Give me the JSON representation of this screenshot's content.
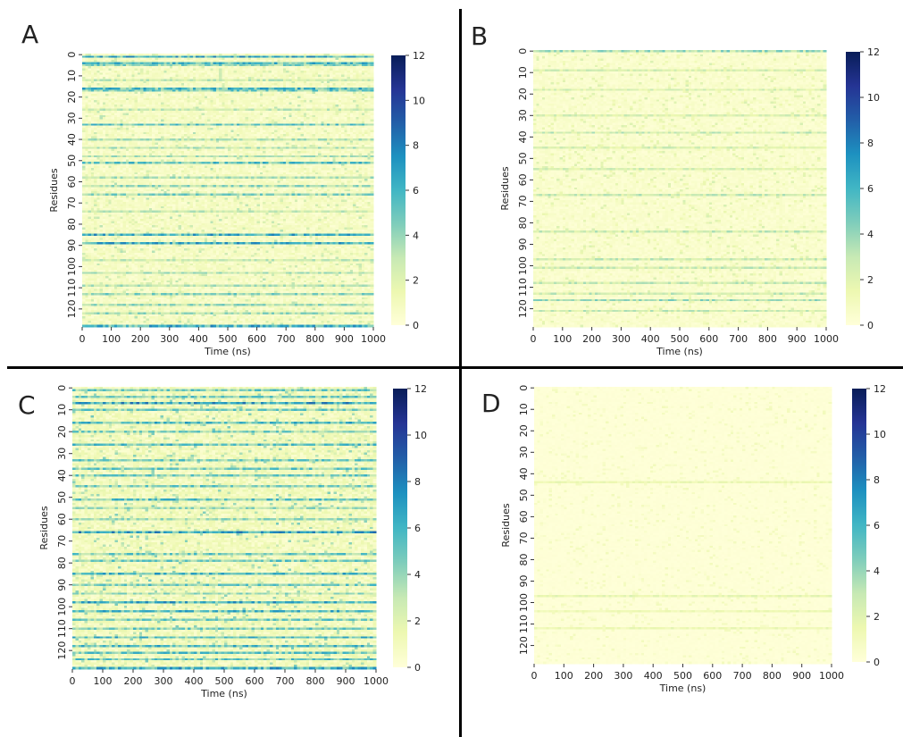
{
  "colors": {
    "colormap": [
      "#ffffd9",
      "#edf8b1",
      "#c7e9b4",
      "#7fcdbb",
      "#41b6c4",
      "#1d91c0",
      "#225ea8",
      "#253494",
      "#081d58"
    ],
    "divider": "#000000",
    "text": "#222222"
  },
  "chart_data": [
    {
      "type": "heatmap",
      "panel_label": "A",
      "xlabel": "Time (ns)",
      "ylabel": "Residues",
      "xlim": [
        0,
        1000
      ],
      "ylim": [
        0,
        129
      ],
      "x_ticks": [
        "0",
        "100",
        "200",
        "300",
        "400",
        "500",
        "600",
        "700",
        "800",
        "900",
        "1000"
      ],
      "y_ticks": [
        "0",
        "10",
        "20",
        "30",
        "40",
        "50",
        "60",
        "70",
        "80",
        "90",
        "100",
        "110",
        "120"
      ],
      "colorbar": {
        "min": 0,
        "max": 12,
        "ticks": [
          "0",
          "2",
          "4",
          "6",
          "8",
          "10",
          "12"
        ]
      },
      "base_level": 1.0,
      "noise_level": 1.2,
      "rows": [
        {
          "residue": 1,
          "value": 6.5
        },
        {
          "residue": 4,
          "value": 6.0
        },
        {
          "residue": 5,
          "value": 4.5
        },
        {
          "residue": 12,
          "value": 3.0
        },
        {
          "residue": 16,
          "value": 6.0
        },
        {
          "residue": 17,
          "value": 5.0
        },
        {
          "residue": 26,
          "value": 3.0
        },
        {
          "residue": 33,
          "value": 5.5
        },
        {
          "residue": 40,
          "value": 3.5
        },
        {
          "residue": 44,
          "value": 3.5
        },
        {
          "residue": 48,
          "value": 3.5
        },
        {
          "residue": 51,
          "value": 5.5
        },
        {
          "residue": 58,
          "value": 3.5
        },
        {
          "residue": 62,
          "value": 4.0
        },
        {
          "residue": 66,
          "value": 4.5
        },
        {
          "residue": 74,
          "value": 3.0
        },
        {
          "residue": 85,
          "value": 6.5
        },
        {
          "residue": 89,
          "value": 6.5
        },
        {
          "residue": 97,
          "value": 3.0
        },
        {
          "residue": 103,
          "value": 3.5
        },
        {
          "residue": 109,
          "value": 3.5
        },
        {
          "residue": 113,
          "value": 4.5
        },
        {
          "residue": 118,
          "value": 4.0
        },
        {
          "residue": 122,
          "value": 4.0
        },
        {
          "residue": 128,
          "value": 6.5
        }
      ]
    },
    {
      "type": "heatmap",
      "panel_label": "B",
      "xlabel": "Time (ns)",
      "ylabel": "Residues",
      "xlim": [
        0,
        1000
      ],
      "ylim": [
        0,
        129
      ],
      "x_ticks": [
        "0",
        "100",
        "200",
        "300",
        "400",
        "500",
        "600",
        "700",
        "800",
        "900",
        "1000"
      ],
      "y_ticks": [
        "0",
        "10",
        "20",
        "30",
        "40",
        "50",
        "60",
        "70",
        "80",
        "90",
        "100",
        "110",
        "120"
      ],
      "colorbar": {
        "min": 0,
        "max": 12,
        "ticks": [
          "0",
          "2",
          "4",
          "6",
          "8",
          "10",
          "12"
        ]
      },
      "base_level": 0.6,
      "noise_level": 0.9,
      "rows": [
        {
          "residue": 0,
          "value": 4.0
        },
        {
          "residue": 9,
          "value": 2.5
        },
        {
          "residue": 18,
          "value": 2.5
        },
        {
          "residue": 30,
          "value": 2.5
        },
        {
          "residue": 38,
          "value": 3.0
        },
        {
          "residue": 45,
          "value": 2.5
        },
        {
          "residue": 55,
          "value": 2.5
        },
        {
          "residue": 67,
          "value": 3.0
        },
        {
          "residue": 84,
          "value": 3.0
        },
        {
          "residue": 97,
          "value": 3.0
        },
        {
          "residue": 101,
          "value": 3.0
        },
        {
          "residue": 108,
          "value": 3.0
        },
        {
          "residue": 113,
          "value": 3.0
        },
        {
          "residue": 116,
          "value": 4.0
        },
        {
          "residue": 121,
          "value": 3.0
        }
      ]
    },
    {
      "type": "heatmap",
      "panel_label": "C",
      "xlabel": "Time (ns)",
      "ylabel": "Residues",
      "xlim": [
        0,
        1000
      ],
      "ylim": [
        0,
        129
      ],
      "x_ticks": [
        "0",
        "100",
        "200",
        "300",
        "400",
        "500",
        "600",
        "700",
        "800",
        "900",
        "1000"
      ],
      "y_ticks": [
        "0",
        "10",
        "20",
        "30",
        "40",
        "50",
        "60",
        "70",
        "80",
        "90",
        "100",
        "110",
        "120"
      ],
      "colorbar": {
        "min": 0,
        "max": 12,
        "ticks": [
          "0",
          "2",
          "4",
          "6",
          "8",
          "10",
          "12"
        ]
      },
      "base_level": 1.4,
      "noise_level": 1.6,
      "rows": [
        {
          "residue": 1,
          "value": 5.0
        },
        {
          "residue": 4,
          "value": 5.0
        },
        {
          "residue": 7,
          "value": 7.0
        },
        {
          "residue": 10,
          "value": 5.0
        },
        {
          "residue": 16,
          "value": 6.0
        },
        {
          "residue": 20,
          "value": 4.5
        },
        {
          "residue": 26,
          "value": 5.5
        },
        {
          "residue": 33,
          "value": 5.0
        },
        {
          "residue": 37,
          "value": 5.0
        },
        {
          "residue": 40,
          "value": 5.0
        },
        {
          "residue": 45,
          "value": 5.0
        },
        {
          "residue": 51,
          "value": 5.5
        },
        {
          "residue": 55,
          "value": 4.0
        },
        {
          "residue": 60,
          "value": 4.0
        },
        {
          "residue": 66,
          "value": 7.0
        },
        {
          "residue": 76,
          "value": 5.0
        },
        {
          "residue": 79,
          "value": 5.0
        },
        {
          "residue": 85,
          "value": 6.0
        },
        {
          "residue": 90,
          "value": 5.0
        },
        {
          "residue": 94,
          "value": 4.0
        },
        {
          "residue": 98,
          "value": 6.5
        },
        {
          "residue": 102,
          "value": 6.0
        },
        {
          "residue": 106,
          "value": 5.0
        },
        {
          "residue": 110,
          "value": 5.0
        },
        {
          "residue": 114,
          "value": 6.0
        },
        {
          "residue": 118,
          "value": 6.0
        },
        {
          "residue": 121,
          "value": 5.5
        },
        {
          "residue": 124,
          "value": 5.5
        },
        {
          "residue": 128,
          "value": 6.5
        }
      ]
    },
    {
      "type": "heatmap",
      "panel_label": "D",
      "xlabel": "Time (ns)",
      "ylabel": "Residues",
      "xlim": [
        0,
        1000
      ],
      "ylim": [
        0,
        129
      ],
      "x_ticks": [
        "0",
        "100",
        "200",
        "300",
        "400",
        "500",
        "600",
        "700",
        "800",
        "900",
        "1000"
      ],
      "y_ticks": [
        "0",
        "10",
        "20",
        "30",
        "40",
        "50",
        "60",
        "70",
        "80",
        "90",
        "100",
        "110",
        "120"
      ],
      "colorbar": {
        "min": 0,
        "max": 12,
        "ticks": [
          "0",
          "2",
          "4",
          "6",
          "8",
          "10",
          "12"
        ]
      },
      "base_level": 0.15,
      "noise_level": 0.5,
      "rows": [
        {
          "residue": 44,
          "value": 1.5
        },
        {
          "residue": 97,
          "value": 1.8
        },
        {
          "residue": 104,
          "value": 1.5
        },
        {
          "residue": 112,
          "value": 1.5
        }
      ]
    }
  ]
}
